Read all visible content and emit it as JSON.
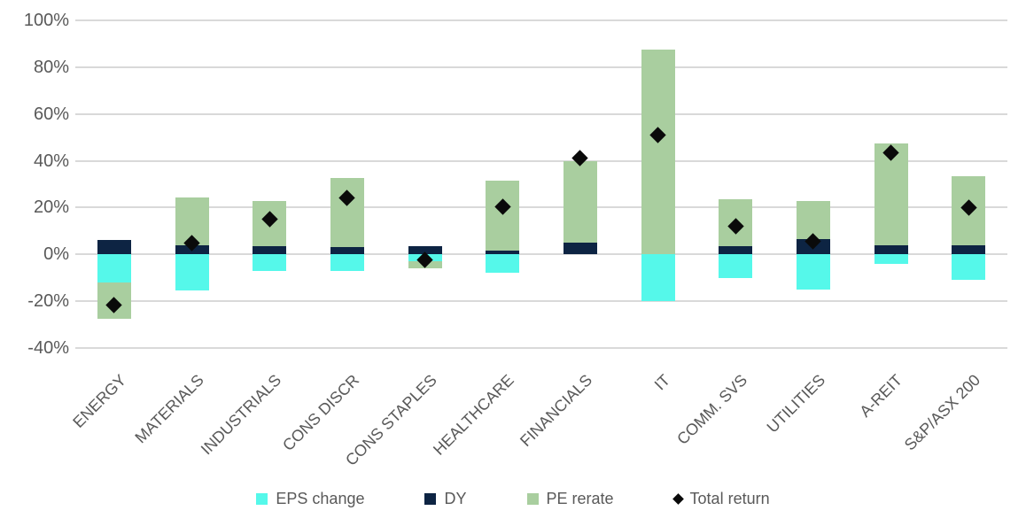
{
  "chart_data": {
    "type": "bar",
    "subtype": "stacked-bars-with-diamond-markers",
    "title": "",
    "xlabel": "",
    "ylabel": "",
    "categories": [
      "ENERGY",
      "MATERIALS",
      "INDUSTRIALS",
      "CONS DISCR",
      "CONS STAPLES",
      "HEALTHCARE",
      "FINANCIALS",
      "IT",
      "COMM. SVS",
      "UTILITIES",
      "A-REIT",
      "S&P/ASX 200"
    ],
    "series": [
      {
        "name": "EPS change",
        "type": "bar",
        "color": "#55F8EA",
        "values": [
          -12,
          -15.5,
          -7,
          -7,
          -3,
          -8,
          0,
          -20,
          -10,
          -15,
          -4,
          -11
        ]
      },
      {
        "name": "DY",
        "type": "bar",
        "color": "#0D2443",
        "values": [
          6,
          4,
          3.5,
          3,
          3.5,
          1.5,
          5,
          0,
          3.5,
          6.5,
          4,
          4
        ]
      },
      {
        "name": "PE rerate",
        "type": "bar",
        "color": "#A9CE9F",
        "values": [
          -15.5,
          20.5,
          19.5,
          29.5,
          -3,
          30,
          35,
          87.5,
          20,
          16.5,
          43.5,
          29.5
        ]
      },
      {
        "name": "Total return",
        "type": "scatter-diamond",
        "color": "#0A0A0A",
        "values": [
          -21.5,
          5,
          15,
          24,
          -2.5,
          20.5,
          41,
          51,
          12,
          5.5,
          43.5,
          20
        ]
      }
    ],
    "y_axis": {
      "min": -40,
      "max": 100,
      "step": 20,
      "tick_values": [
        100,
        80,
        60,
        40,
        20,
        0,
        -20,
        -40
      ],
      "tick_labels": [
        "100%",
        "80%",
        "60%",
        "40%",
        "20%",
        "0%",
        "-20%",
        "-40%"
      ]
    },
    "grid": true,
    "legend_position": "bottom"
  },
  "colors": {
    "gridline": "#D9D9D9",
    "axis_text": "#595959",
    "background": "#FFFFFF"
  }
}
